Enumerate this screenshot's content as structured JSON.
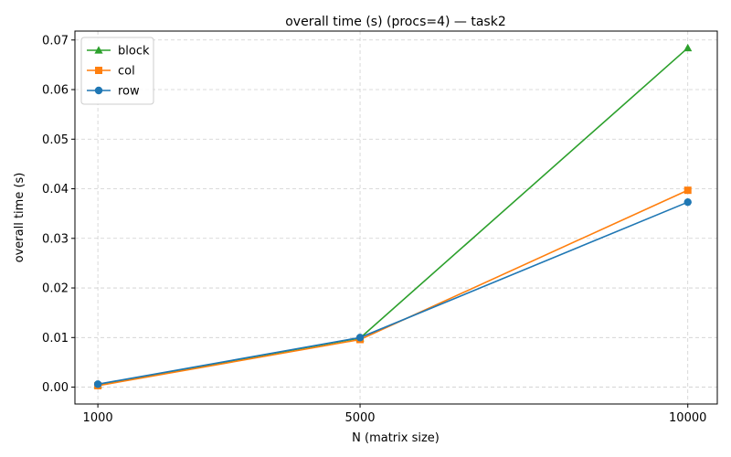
{
  "chart_data": {
    "type": "line",
    "title": "overall time (s) (procs=4) — task2",
    "xlabel": "N (matrix size)",
    "ylabel": "overall time (s)",
    "x": [
      1000,
      5000,
      10000
    ],
    "xticks": [
      "1000",
      "5000",
      "10000"
    ],
    "yticks": [
      "0.00",
      "0.01",
      "0.02",
      "0.03",
      "0.04",
      "0.05",
      "0.06",
      "0.07"
    ],
    "ytick_values": [
      0,
      0.01,
      0.02,
      0.03,
      0.04,
      0.05,
      0.06,
      0.07
    ],
    "xlim": [
      650,
      10450
    ],
    "ylim": [
      -0.0034,
      0.0718
    ],
    "grid": true,
    "legend_position": "top-left",
    "series": [
      {
        "name": "block",
        "color": "#2ca02c",
        "marker": "triangle",
        "values": [
          0.0005,
          0.0099,
          0.0684
        ]
      },
      {
        "name": "col",
        "color": "#ff7f0e",
        "marker": "square",
        "values": [
          0.0003,
          0.0096,
          0.0397
        ]
      },
      {
        "name": "row",
        "color": "#1f77b4",
        "marker": "circle",
        "values": [
          0.0006,
          0.01,
          0.0373
        ]
      }
    ]
  }
}
